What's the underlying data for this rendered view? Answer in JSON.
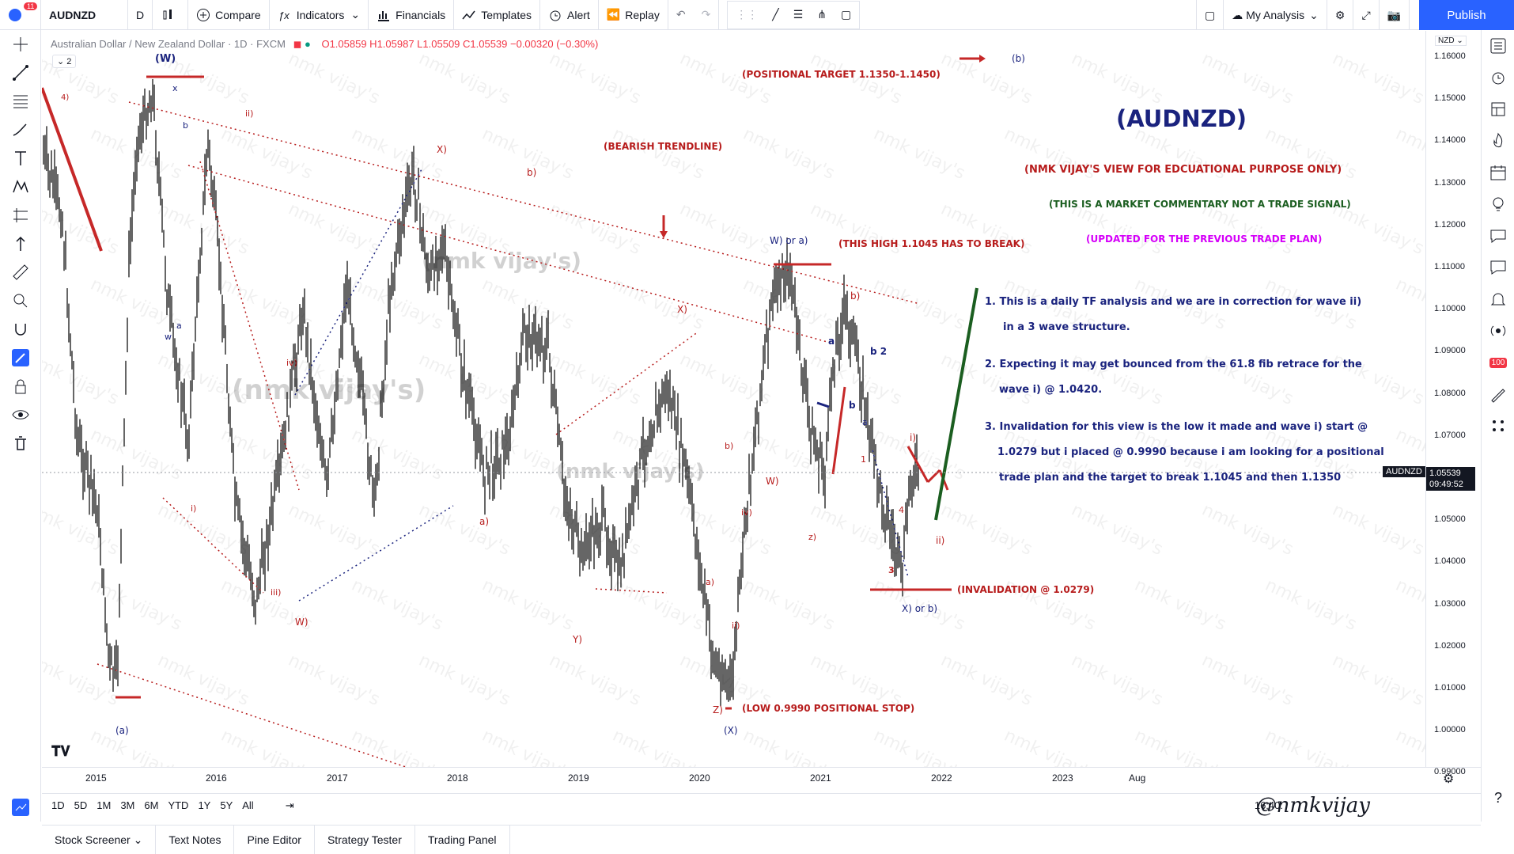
{
  "topbar": {
    "notification_count": "11",
    "symbol": "AUDNZD",
    "interval": "D",
    "compare": "Compare",
    "indicators": "Indicators",
    "financials": "Financials",
    "templates": "Templates",
    "alert": "Alert",
    "replay": "Replay",
    "layout_name": "My Analysis",
    "publish": "Publish"
  },
  "legend": {
    "title": "Australian Dollar / New Zealand Dollar · 1D · FXCM",
    "ohlc": "O1.05859 H1.05987 L1.05509 C1.05539 −0.00320 (−0.30%)",
    "collapse_count": "2"
  },
  "price_scale": {
    "currency": "NZD",
    "ticks": [
      "1.16000",
      "1.15000",
      "1.14000",
      "1.13000",
      "1.12000",
      "1.11000",
      "1.10000",
      "1.09000",
      "1.08000",
      "1.07000",
      "1.06000",
      "1.05000",
      "1.04000",
      "1.03000",
      "1.02000",
      "1.01000",
      "1.00000",
      "0.99000"
    ],
    "last_symbol": "AUDNZD",
    "last_price": "1.05539",
    "countdown": "09:49:52",
    "alert_badge": "100"
  },
  "time_scale": {
    "ticks": [
      "2015",
      "2016",
      "2017",
      "2018",
      "2019",
      "2020",
      "2021",
      "2022",
      "2023",
      "Aug"
    ]
  },
  "range_bar": {
    "ranges": [
      "1D",
      "5D",
      "1M",
      "3M",
      "6M",
      "YTD",
      "1Y",
      "5Y",
      "All"
    ],
    "clock": "16:40:"
  },
  "bottom_panel": {
    "tabs": [
      "Stock Screener",
      "Text Notes",
      "Pine Editor",
      "Strategy Tester",
      "Trading Panel"
    ]
  },
  "annotations": {
    "title": "(AUDNZD)",
    "view": "(NMK VIJAY'S VIEW FOR EDCUATIONAL PURPOSE ONLY)",
    "disclaimer": "(THIS IS A MARKET COMMENTARY NOT A TRADE SIGNAL)",
    "updated": "(UPDATED FOR THE PREVIOUS TRADE PLAN)",
    "positional_target": "(POSITIONAL TARGET 1.1350-1.1450)",
    "bearish_trendline": "(BEARISH TRENDLINE)",
    "high_break": "(THIS HIGH 1.1045 HAS TO BREAK)",
    "invalidation": "(INVALIDATION @ 1.0279)",
    "low_stop": "(LOW 0.9990 POSITIONAL STOP)",
    "point1a": "1. This is a daily TF analysis and we are in correction for wave ii)",
    "point1b": "in a 3 wave structure.",
    "point2a": "2. Expecting it may get bounced from the 61.8 fib retrace for the",
    "point2b": "wave i) @ 1.0420.",
    "point3a": "3. Invalidation for this view is the low it made and wave i) start @",
    "point3b": "1.0279 but i placed @ 0.9990 because i am looking for a positional",
    "point3c": "trade plan and the target to break 1.1045 and then 1.1350",
    "signature": "@nmkvijay",
    "watermark": "nmk vijay's",
    "waves": {
      "W_top": "(W)",
      "x1": "x",
      "b1": "b",
      "w1": "w",
      "a1": "a",
      "ii_top": "ii)",
      "four": "4)",
      "X_paren": "X)",
      "b_paren": "b)",
      "iv_paren": "iv)",
      "i_paren": "i)",
      "iii_paren": "iii)",
      "W_paren": "W)",
      "a_paren": "a)",
      "Y_paren": "Y)",
      "X_mid": "X)",
      "W_or_a": "W) or a)",
      "b_right": "b)",
      "a_right": "a",
      "b_right2": "b",
      "b2": "b 2",
      "a_small": "a",
      "one": "1",
      "three": "3",
      "four_small": "4",
      "i_right": "i)",
      "ii_right": "ii)",
      "z_paren": "z)",
      "X_or_b": "X) or b)",
      "W_2020": "W)",
      "iv_2020": "iv)",
      "b_2020": "b)",
      "a_2020": "a)",
      "ii_2020": "ii)",
      "Z_paren": "Z)",
      "X_bottom": "(X)",
      "a_bottom": "(a)",
      "b_top": "(b)"
    }
  },
  "colors": {
    "accent": "#2962ff",
    "annotation_red": "#b71c1c",
    "annotation_blue": "#1a237e",
    "annotation_green": "#1b5e20",
    "annotation_magenta": "#d500f9",
    "candles": "#000000"
  }
}
